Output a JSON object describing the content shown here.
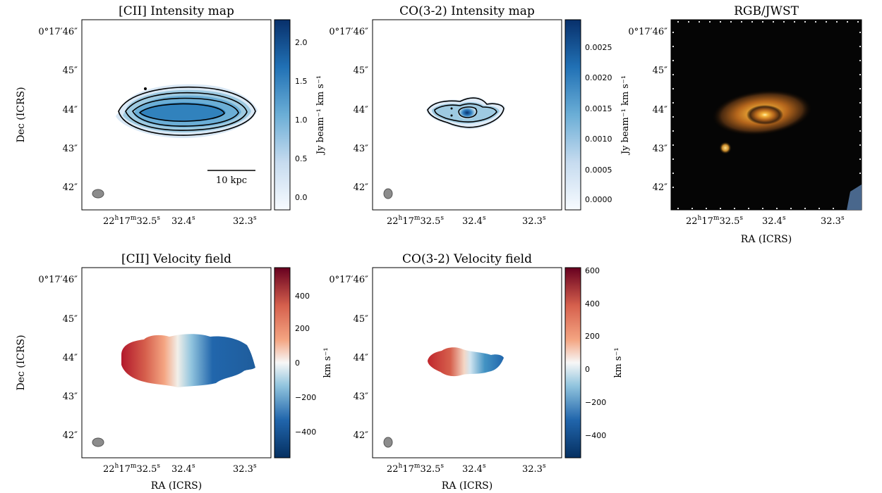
{
  "chart_data": [
    {
      "type": "heatmap",
      "title": "[CII] Intensity map",
      "ylabel": "Dec (ICRS)",
      "xlabel": "",
      "yticks": [
        "0°17′46″",
        "45″",
        "44″",
        "43″",
        "42″"
      ],
      "xticks": [
        {
          "main": "22",
          "h": "h",
          "mid": "17",
          "m": "m",
          "sec": "32.5",
          "s": "s"
        },
        {
          "main": "32.4",
          "s": "s"
        },
        {
          "main": "32.3",
          "s": "s"
        }
      ],
      "colorbar": {
        "label": "Jy beam⁻¹ km s⁻¹",
        "cmap": "Blues",
        "ticks": [
          "2.0",
          "1.5",
          "1.0",
          "0.5",
          "0.0"
        ],
        "range": [
          -0.2,
          2.3
        ]
      },
      "scalebar_label": "10 kpc",
      "contours": true,
      "beam": true
    },
    {
      "type": "heatmap",
      "title": "CO(3-2) Intensity map",
      "ylabel": "",
      "xlabel": "",
      "yticks": [
        "0°17′46″",
        "45″",
        "44″",
        "43″",
        "42″"
      ],
      "xticks": [
        {
          "main": "22",
          "h": "h",
          "mid": "17",
          "m": "m",
          "sec": "32.5",
          "s": "s"
        },
        {
          "main": "32.4",
          "s": "s"
        },
        {
          "main": "32.3",
          "s": "s"
        }
      ],
      "colorbar": {
        "label": "Jy beam⁻¹ km s⁻¹",
        "cmap": "Blues",
        "ticks": [
          "0.0025",
          "0.0020",
          "0.0015",
          "0.0010",
          "0.0005",
          "0.0000"
        ],
        "range": [
          -0.0002,
          0.0029
        ]
      },
      "contours": true,
      "beam": true
    },
    {
      "type": "heatmap",
      "title": "RGB/JWST",
      "ylabel": "",
      "xlabel": "RA (ICRS)",
      "yticks": [
        "0°17′46″",
        "45″",
        "44″",
        "43″",
        "42″"
      ],
      "xticks": [
        {
          "main": "22",
          "h": "h",
          "mid": "17",
          "m": "m",
          "sec": "32.5",
          "s": "s"
        },
        {
          "main": "32.4",
          "s": "s"
        },
        {
          "main": "32.3",
          "s": "s"
        }
      ]
    },
    {
      "type": "heatmap",
      "title": "[CII] Velocity field",
      "ylabel": "Dec (ICRS)",
      "xlabel": "RA (ICRS)",
      "yticks": [
        "0°17′46″",
        "45″",
        "44″",
        "43″",
        "42″"
      ],
      "xticks": [
        {
          "main": "22",
          "h": "h",
          "mid": "17",
          "m": "m",
          "sec": "32.5",
          "s": "s"
        },
        {
          "main": "32.4",
          "s": "s"
        },
        {
          "main": "32.3",
          "s": "s"
        }
      ],
      "colorbar": {
        "label": "km s⁻¹",
        "cmap": "RdBu_r",
        "ticks": [
          "400",
          "200",
          "0",
          "−200",
          "−400"
        ],
        "range": [
          -550,
          550
        ]
      },
      "beam": true
    },
    {
      "type": "heatmap",
      "title": "CO(3-2) Velocity field",
      "ylabel": "",
      "xlabel": "RA (ICRS)",
      "yticks": [
        "0°17′46″",
        "45″",
        "44″",
        "43″",
        "42″"
      ],
      "xticks": [
        {
          "main": "22",
          "h": "h",
          "mid": "17",
          "m": "m",
          "sec": "32.5",
          "s": "s"
        },
        {
          "main": "32.4",
          "s": "s"
        },
        {
          "main": "32.3",
          "s": "s"
        }
      ],
      "colorbar": {
        "label": "km s⁻¹",
        "cmap": "RdBu_r",
        "ticks": [
          "600",
          "400",
          "200",
          "0",
          "−200",
          "−400"
        ],
        "range": [
          -620,
          620
        ]
      },
      "beam": true
    }
  ]
}
